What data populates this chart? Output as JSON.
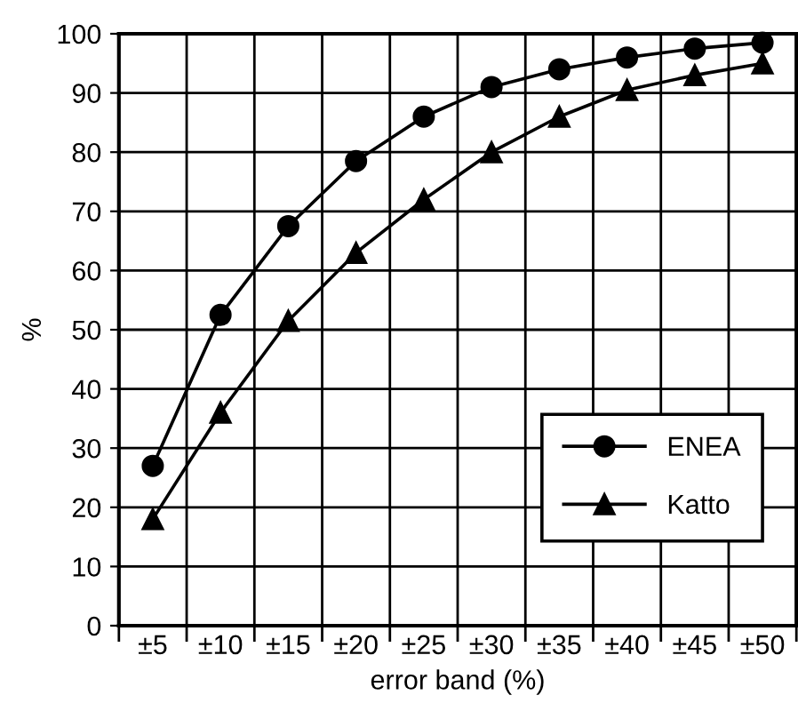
{
  "chart_data": {
    "type": "line",
    "xlabel": "error band (%)",
    "ylabel": "%",
    "categories": [
      "±5",
      "±10",
      "±15",
      "±20",
      "±25",
      "±30",
      "±35",
      "±40",
      "±45",
      "±50"
    ],
    "series": [
      {
        "name": "ENEA",
        "color": "#000000",
        "marker": "circle",
        "values": [
          27,
          52.5,
          67.5,
          78.5,
          86,
          91,
          94,
          96,
          97.5,
          98.5
        ]
      },
      {
        "name": "Katto",
        "color": "#000000",
        "marker": "triangle",
        "values": [
          18,
          36,
          51.5,
          63,
          72,
          80,
          86,
          90.5,
          93,
          95
        ]
      }
    ],
    "ylim": [
      0,
      100
    ],
    "yticks": [
      0,
      10,
      20,
      30,
      40,
      50,
      60,
      70,
      80,
      90,
      100
    ],
    "grid": true,
    "legend": "bottom right",
    "line_style": "solid"
  }
}
